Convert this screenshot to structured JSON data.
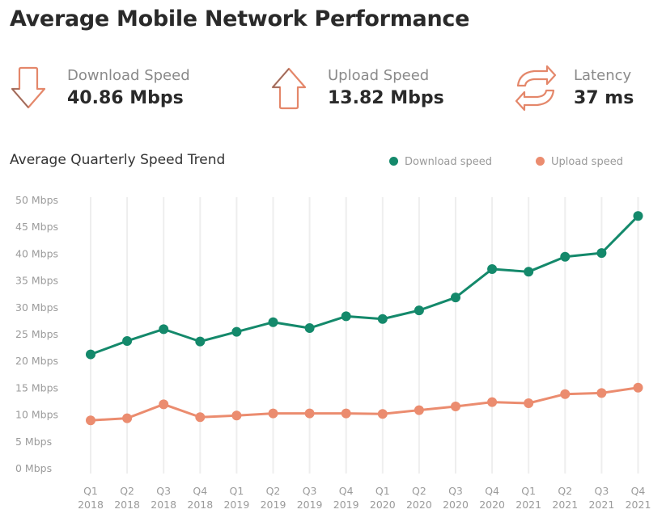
{
  "title": "Average Mobile Network Performance",
  "kpis": [
    {
      "label": "Download Speed",
      "value": "40.86 Mbps",
      "icon": "arrow-down-icon",
      "color": "#e4876a"
    },
    {
      "label": "Upload Speed",
      "value": "13.82 Mbps",
      "icon": "arrow-up-icon",
      "color": "#e4876a"
    },
    {
      "label": "Latency",
      "value": "37 ms",
      "icon": "refresh-icon",
      "color": "#e4876a"
    }
  ],
  "chart_title": "Average Quarterly Speed Trend",
  "colors": {
    "download": "#14896b",
    "upload": "#eb8c6f",
    "grid": "#eeeeee"
  },
  "chart_data": {
    "type": "line",
    "title": "Average Quarterly Speed Trend",
    "categories": [
      [
        "Q1",
        "2018"
      ],
      [
        "Q2",
        "2018"
      ],
      [
        "Q3",
        "2018"
      ],
      [
        "Q4",
        "2018"
      ],
      [
        "Q1",
        "2019"
      ],
      [
        "Q2",
        "2019"
      ],
      [
        "Q3",
        "2019"
      ],
      [
        "Q4",
        "2019"
      ],
      [
        "Q1",
        "2020"
      ],
      [
        "Q2",
        "2020"
      ],
      [
        "Q3",
        "2020"
      ],
      [
        "Q4",
        "2020"
      ],
      [
        "Q1",
        "2021"
      ],
      [
        "Q2",
        "2021"
      ],
      [
        "Q3",
        "2021"
      ],
      [
        "Q4",
        "2021"
      ]
    ],
    "y_ticks": [
      "0 Mbps",
      "5 Mbps",
      "10 Mbps",
      "15 Mbps",
      "20 Mbps",
      "25 Mbps",
      "30 Mbps",
      "35 Mbps",
      "40 Mbps",
      "45 Mbps",
      "50 Mbps"
    ],
    "ylim": [
      0,
      50
    ],
    "legend_position": "top-right",
    "series": [
      {
        "name": "Download speed",
        "key": "download",
        "values": [
          21.3,
          23.8,
          26.0,
          23.7,
          25.5,
          27.3,
          26.2,
          28.4,
          27.9,
          29.5,
          31.9,
          37.2,
          36.7,
          39.5,
          40.2,
          47.1
        ]
      },
      {
        "name": "Upload speed",
        "key": "upload",
        "values": [
          9.0,
          9.4,
          12.0,
          9.6,
          9.9,
          10.3,
          10.3,
          10.3,
          10.2,
          10.9,
          11.6,
          12.4,
          12.2,
          13.9,
          14.1,
          15.1
        ]
      }
    ]
  }
}
